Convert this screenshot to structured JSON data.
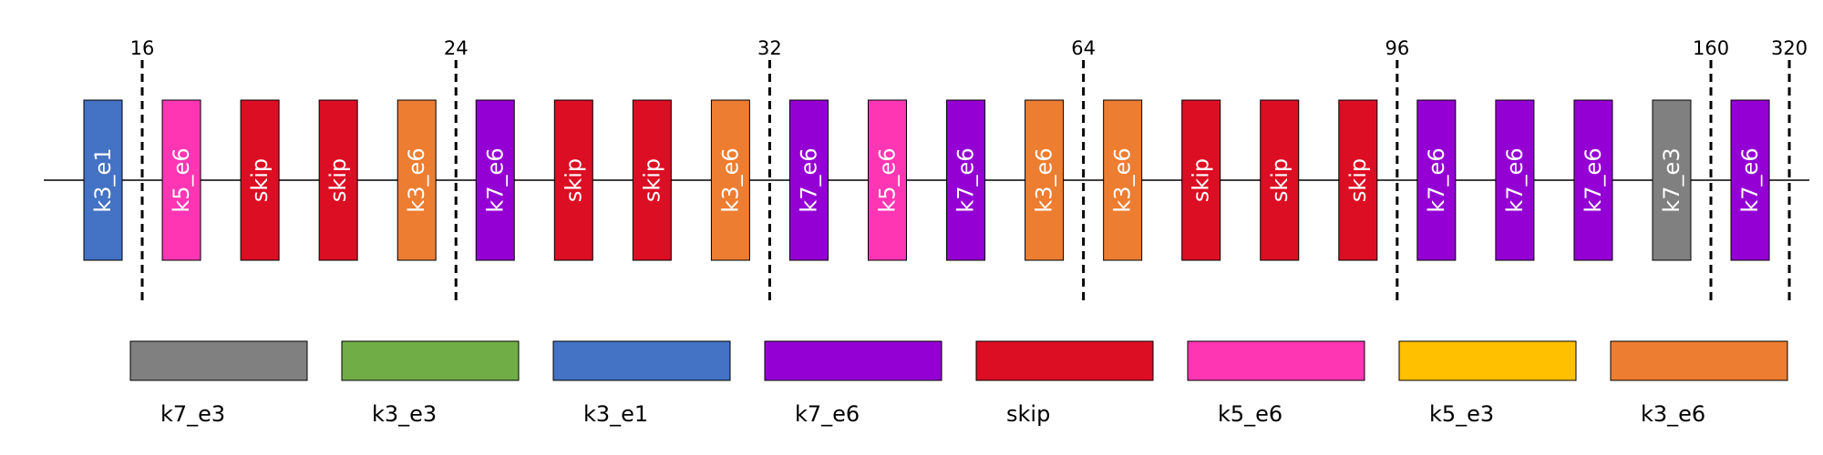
{
  "colors": {
    "k7_e3": "#808080",
    "k3_e3": "#70ad47",
    "k3_e1": "#4472c4",
    "k7_e6": "#9400d3",
    "skip": "#dc0e23",
    "k5_e6": "#ff36b4",
    "k5_e3": "#ffc000",
    "k3_e6": "#ed7d31"
  },
  "blocks": [
    "k3_e1",
    "k5_e6",
    "skip",
    "skip",
    "k3_e6",
    "k7_e6",
    "skip",
    "skip",
    "k3_e6",
    "k7_e6",
    "k5_e6",
    "k7_e6",
    "k3_e6",
    "k3_e6",
    "skip",
    "skip",
    "skip",
    "k7_e6",
    "k7_e6",
    "k7_e6",
    "k7_e3",
    "k7_e6"
  ],
  "stage_markers": [
    {
      "label": "16",
      "after_block": 0
    },
    {
      "label": "24",
      "after_block": 4
    },
    {
      "label": "32",
      "after_block": 8
    },
    {
      "label": "64",
      "after_block": 12
    },
    {
      "label": "96",
      "after_block": 16
    },
    {
      "label": "160",
      "after_block": 20
    },
    {
      "label": "320",
      "after_block": 21
    }
  ],
  "legend": [
    "k7_e3",
    "k3_e3",
    "k3_e1",
    "k7_e6",
    "skip",
    "k5_e6",
    "k5_e3",
    "k3_e6"
  ]
}
